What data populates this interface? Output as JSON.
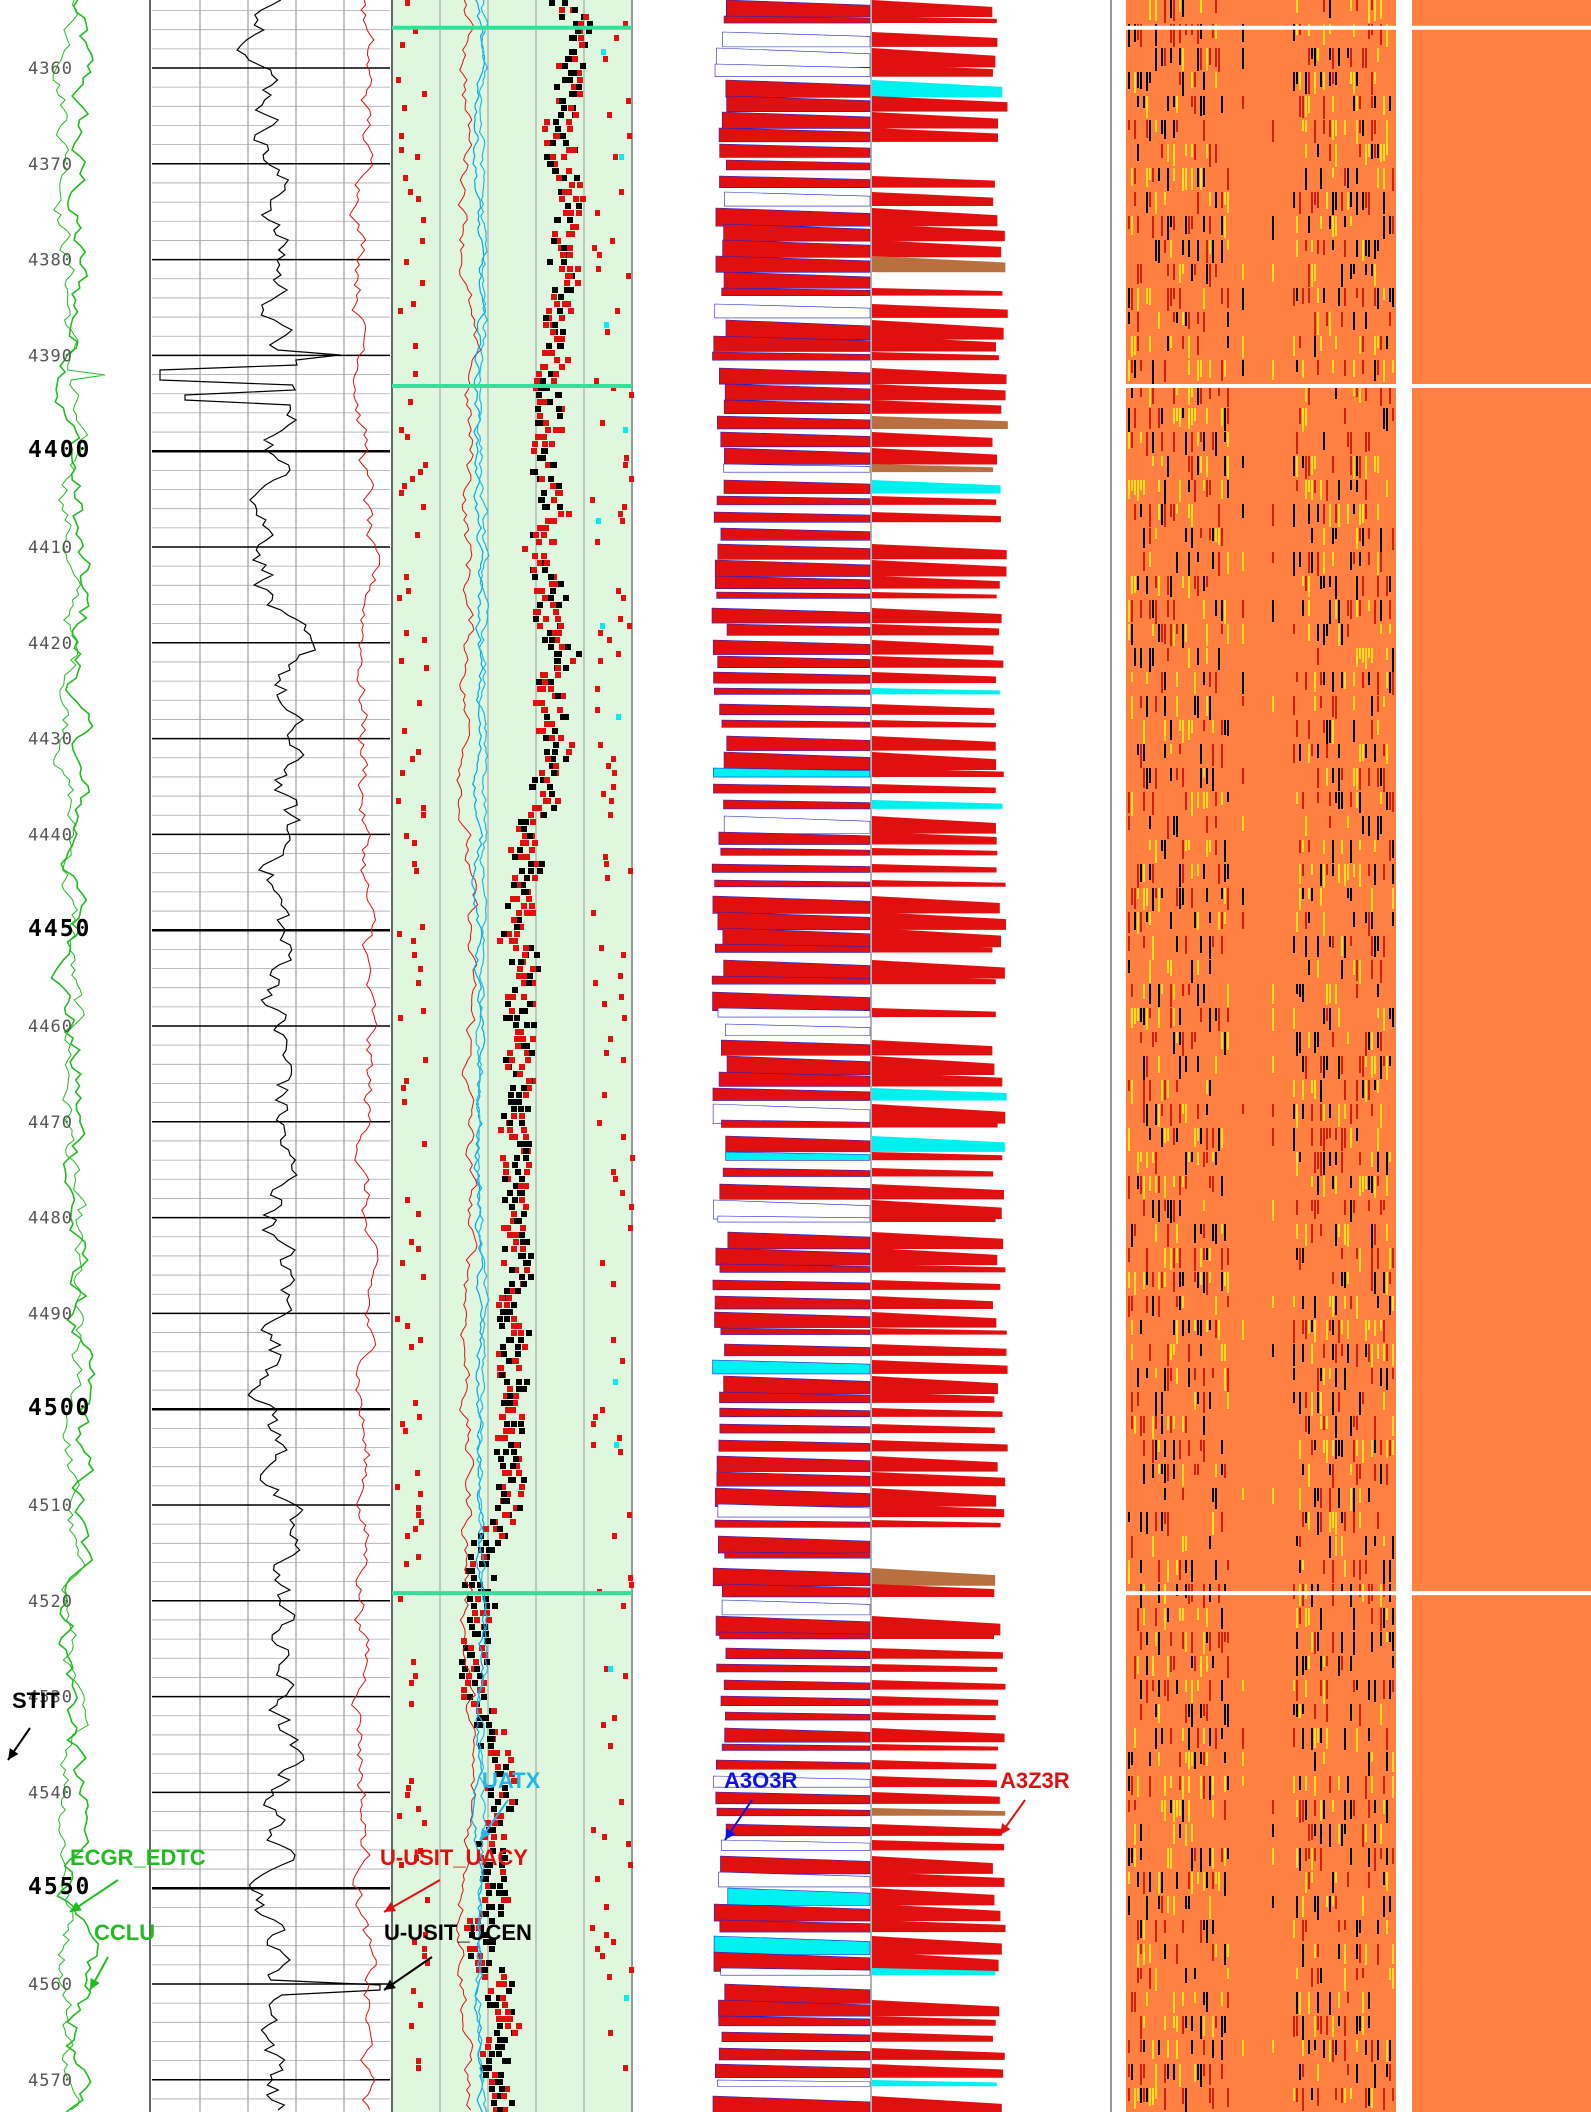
{
  "depth_track": {
    "first_depth": 4360,
    "last_depth": 4570,
    "depth_step": 10,
    "major_depths": [
      4400,
      4450,
      4500,
      4550
    ]
  },
  "boundaries": {
    "depths": [
      4355.8,
      4393.2,
      4519.2
    ]
  },
  "curve_labels": [
    {
      "text": "STIT",
      "color": "#000000"
    },
    {
      "text": "ECGR_EDTC",
      "color": "#22bb22"
    },
    {
      "text": "CCLU",
      "color": "#22bb22"
    },
    {
      "text": "U-USIT_UACY",
      "color": "#e01010"
    },
    {
      "text": "U-USIT_UCEN",
      "color": "#000000"
    },
    {
      "text": "UATX",
      "color": "#20b8e8"
    },
    {
      "text": "A3O3R",
      "color": "#1010ee"
    },
    {
      "text": "A3Z3R",
      "color": "#e01010"
    }
  ],
  "colors": {
    "green_curve": "#22bb22",
    "red_curve": "#e01010",
    "black_curve": "#000000",
    "cyan": "#00f0f0",
    "brown": "#b87040",
    "light_green_track": "#dff7df",
    "image_orange": "#ff8040",
    "boundary_green": "#33e099",
    "grid_gray": "#888888"
  }
}
